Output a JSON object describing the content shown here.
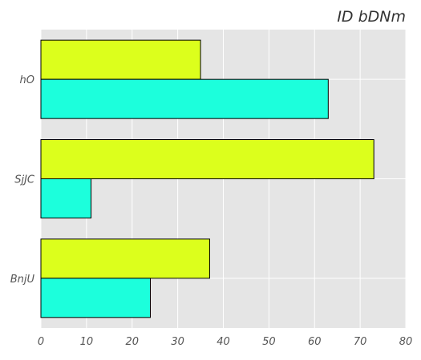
{
  "chart_data": {
    "type": "bar",
    "orientation": "horizontal",
    "title": "ID  bDNm",
    "xlabel": "",
    "ylabel": "",
    "categories": [
      "hO",
      "SjJC",
      "BnjU"
    ],
    "series": [
      {
        "values": [
          35,
          73,
          37
        ],
        "color": "#dcff1c"
      },
      {
        "values": [
          63,
          11,
          24
        ],
        "color": "#1cffdc"
      }
    ],
    "xlim": [
      0,
      80
    ],
    "xticks": [
      0,
      10,
      20,
      30,
      40,
      50,
      60,
      70,
      80
    ],
    "grid": true,
    "legend": "none",
    "background": "#e5e5e5",
    "gridcolor": "#ffffff"
  }
}
